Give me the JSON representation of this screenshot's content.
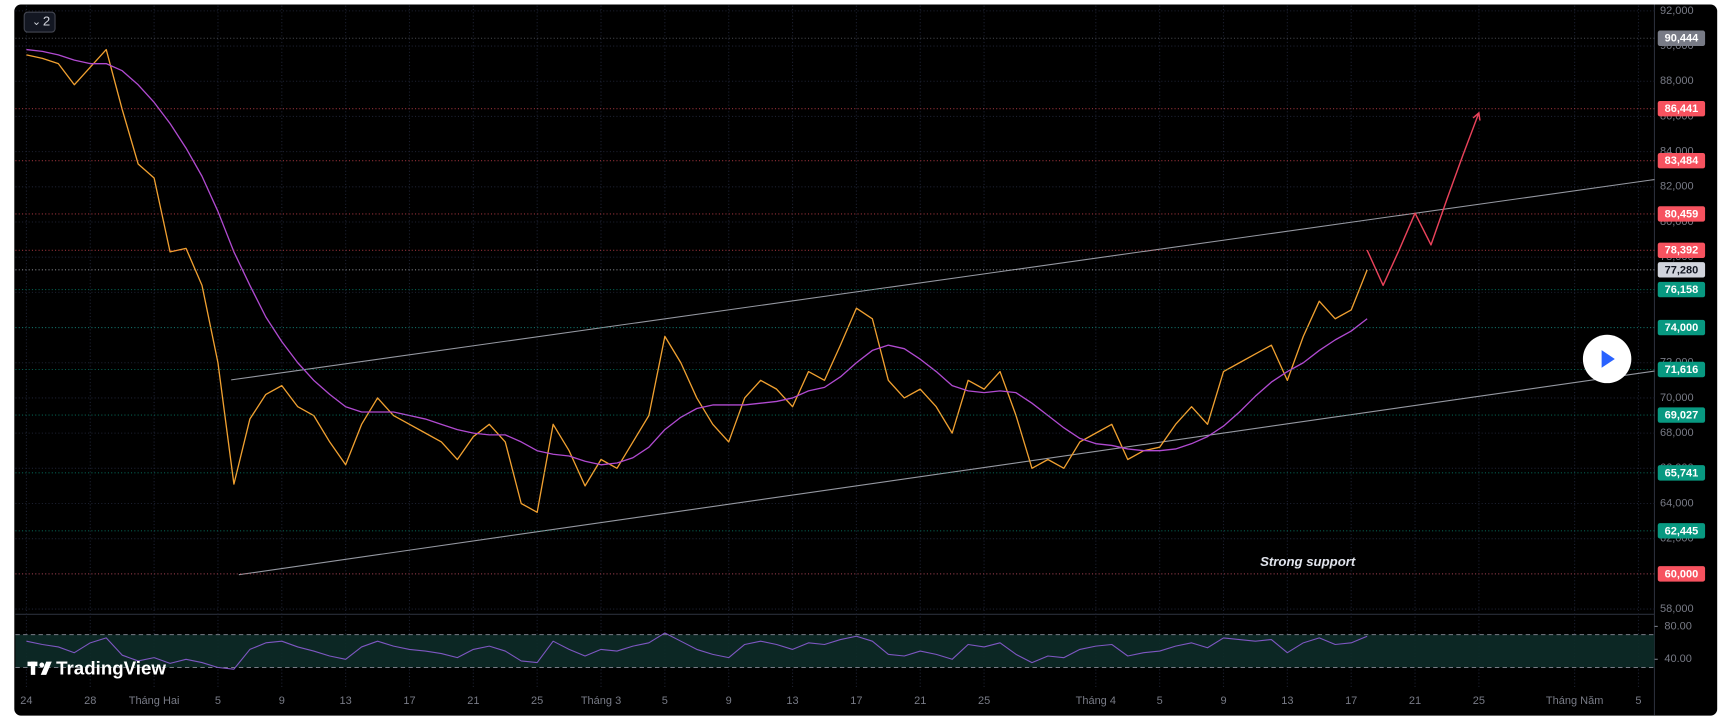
{
  "chart_data": {
    "type": "line",
    "badge": "2",
    "logo": "TradingView",
    "annotation": "Strong support",
    "categories": [
      "24",
      null,
      null,
      null,
      "28",
      null,
      null,
      null,
      "Tháng Hai",
      null,
      null,
      null,
      "5",
      null,
      null,
      null,
      "9",
      null,
      null,
      null,
      "13",
      null,
      null,
      null,
      "17",
      null,
      null,
      null,
      "21",
      null,
      null,
      null,
      "25",
      null,
      null,
      null,
      "Tháng 3",
      null,
      null,
      null,
      "5",
      null,
      null,
      null,
      "9",
      null,
      null,
      null,
      "13",
      null,
      null,
      null,
      "17",
      null,
      null,
      null,
      "21",
      null,
      null,
      null,
      "25",
      null,
      null,
      null,
      null,
      null,
      null,
      "Tháng 4",
      null,
      null,
      null,
      "5",
      null,
      null,
      null,
      "9",
      null,
      null,
      null,
      "13",
      null,
      null,
      null,
      "17",
      null,
      null,
      null,
      "21",
      null,
      null,
      null,
      "25",
      null,
      null,
      null,
      null,
      null,
      "Tháng Năm",
      null,
      null,
      null,
      "5"
    ],
    "series": [
      {
        "color": "#f0a030",
        "values": [
          89500,
          89300,
          89000,
          87800,
          88800,
          89800,
          86400,
          83300,
          82500,
          78300,
          78500,
          76400,
          72000,
          65100,
          68800,
          70200,
          70700,
          69500,
          69000,
          67500,
          66200,
          68500,
          70000,
          69000,
          68500,
          68000,
          67500,
          66500,
          67800,
          68500,
          67500,
          64000,
          63500,
          68500,
          67000,
          65000,
          66500,
          66000,
          67500,
          69000,
          73500,
          72000,
          70000,
          68500,
          67500,
          70000,
          71000,
          70500,
          69500,
          71500,
          71000,
          73000,
          75100,
          74500,
          71000,
          70000,
          70500,
          69500,
          68000,
          71000,
          70500,
          71500,
          69000,
          66000,
          66500,
          66000,
          67500,
          68000,
          68500,
          66500,
          67000,
          67200,
          68500,
          69500,
          68500,
          71500,
          72000,
          72500,
          73000,
          71000,
          73500,
          75500,
          74500,
          75000,
          77280,
          null,
          null,
          null,
          null,
          null,
          null,
          null,
          null,
          null,
          null,
          null,
          null,
          null,
          null,
          null,
          null,
          null
        ]
      },
      {
        "color": "#b04ad0",
        "values": [
          89800,
          89700,
          89500,
          89200,
          89000,
          89000,
          88600,
          87800,
          86800,
          85600,
          84200,
          82600,
          80600,
          78300,
          76400,
          74600,
          73200,
          72000,
          71000,
          70200,
          69500,
          69200,
          69200,
          69200,
          69000,
          68800,
          68500,
          68200,
          68000,
          67900,
          67900,
          67500,
          67000,
          66800,
          66700,
          66400,
          66200,
          66300,
          66600,
          67200,
          68200,
          68900,
          69400,
          69600,
          69600,
          69600,
          69700,
          69800,
          70000,
          70400,
          70600,
          71200,
          72000,
          72700,
          73000,
          72800,
          72200,
          71500,
          70700,
          70400,
          70300,
          70400,
          70300,
          69700,
          69000,
          68300,
          67700,
          67400,
          67300,
          67100,
          67000,
          67000,
          67100,
          67400,
          67800,
          68400,
          69200,
          70100,
          70900,
          71500,
          72000,
          72700,
          73300,
          73800,
          74500,
          null,
          null,
          null,
          null,
          null,
          null,
          null,
          null,
          null,
          null,
          null,
          null,
          null,
          null,
          null,
          null,
          null
        ]
      },
      {
        "color": "#e8425a",
        "values": [
          null,
          null,
          null,
          null,
          null,
          null,
          null,
          null,
          null,
          null,
          null,
          null,
          null,
          null,
          null,
          null,
          null,
          null,
          null,
          null,
          null,
          null,
          null,
          null,
          null,
          null,
          null,
          null,
          null,
          null,
          null,
          null,
          null,
          null,
          null,
          null,
          null,
          null,
          null,
          null,
          null,
          null,
          null,
          null,
          null,
          null,
          null,
          null,
          null,
          null,
          null,
          null,
          null,
          null,
          null,
          null,
          null,
          null,
          null,
          null,
          null,
          null,
          null,
          null,
          null,
          null,
          null,
          null,
          null,
          null,
          null,
          null,
          null,
          null,
          null,
          null,
          null,
          null,
          null,
          null,
          null,
          null,
          null,
          null,
          78400,
          76400,
          78400,
          80500,
          78700,
          81300,
          83800,
          86200,
          null,
          null,
          null,
          null,
          null,
          null,
          null,
          null,
          null,
          null
        ]
      }
    ],
    "ylim": [
      57700,
      92300
    ],
    "yticks": [
      {
        "value": 58000,
        "label": "58,000"
      },
      {
        "value": 60000,
        "label": "60,000"
      },
      {
        "value": 62000,
        "label": "62,000"
      },
      {
        "value": 64000,
        "label": "64,000"
      },
      {
        "value": 66000,
        "label": "66,000"
      },
      {
        "value": 68000,
        "label": "68,000"
      },
      {
        "value": 70000,
        "label": "70,000"
      },
      {
        "value": 72000,
        "label": "72,000"
      },
      {
        "value": 74000,
        "label": "74,000"
      },
      {
        "value": 76000,
        "label": "76,000"
      },
      {
        "value": 78000,
        "label": "78,000"
      },
      {
        "value": 80000,
        "label": "80,000"
      },
      {
        "value": 82000,
        "label": "82,000"
      },
      {
        "value": 84000,
        "label": "84,000"
      },
      {
        "value": 86000,
        "label": "86,000"
      },
      {
        "value": 88000,
        "label": "88,000"
      },
      {
        "value": 90000,
        "label": "90,000"
      },
      {
        "value": 92000,
        "label": "92,000"
      }
    ],
    "grid": true,
    "levels": [
      {
        "value": 90444,
        "label": "90,444",
        "color": "#787b86"
      },
      {
        "value": 86441,
        "label": "86,441",
        "color": "#f7525f"
      },
      {
        "value": 83484,
        "label": "83,484",
        "color": "#f7525f"
      },
      {
        "value": 80459,
        "label": "80,459",
        "color": "#f7525f"
      },
      {
        "value": 78392,
        "label": "78,392",
        "color": "#f7525f"
      },
      {
        "value": 77280,
        "label": "77,280",
        "color": "#d1d4dc"
      },
      {
        "value": 76158,
        "label": "76,158",
        "color": "#089981"
      },
      {
        "value": 74000,
        "label": "74,000",
        "color": "#089981"
      },
      {
        "value": 71616,
        "label": "71,616",
        "color": "#089981"
      },
      {
        "value": 69027,
        "label": "69,027",
        "color": "#089981"
      },
      {
        "value": 65741,
        "label": "65,741",
        "color": "#089981"
      },
      {
        "value": 62445,
        "label": "62,445",
        "color": "#089981"
      },
      {
        "value": 60000,
        "label": "60,000",
        "color": "#f7525f"
      }
    ],
    "rsi": {
      "color": "#7e57c2",
      "ylim": [
        9,
        92
      ],
      "yticks": [
        {
          "value": 80,
          "label": "80.00"
        },
        {
          "value": 40,
          "label": "40.00"
        }
      ],
      "band": [
        30,
        70
      ],
      "values": [
        62,
        58,
        55,
        48,
        60,
        66,
        45,
        38,
        42,
        35,
        40,
        36,
        30,
        28,
        52,
        60,
        62,
        55,
        50,
        44,
        40,
        55,
        62,
        56,
        52,
        50,
        47,
        42,
        52,
        56,
        50,
        38,
        36,
        62,
        52,
        44,
        52,
        50,
        56,
        60,
        72,
        62,
        52,
        46,
        42,
        58,
        62,
        58,
        52,
        60,
        58,
        64,
        68,
        62,
        46,
        44,
        50,
        46,
        40,
        58,
        55,
        60,
        46,
        36,
        44,
        42,
        52,
        56,
        58,
        44,
        48,
        50,
        56,
        60,
        54,
        66,
        64,
        62,
        64,
        48,
        60,
        66,
        58,
        60,
        68,
        null,
        null,
        null,
        null,
        null,
        null,
        null,
        null,
        null,
        null,
        null,
        null,
        null,
        null,
        null,
        null,
        null
      ]
    }
  }
}
